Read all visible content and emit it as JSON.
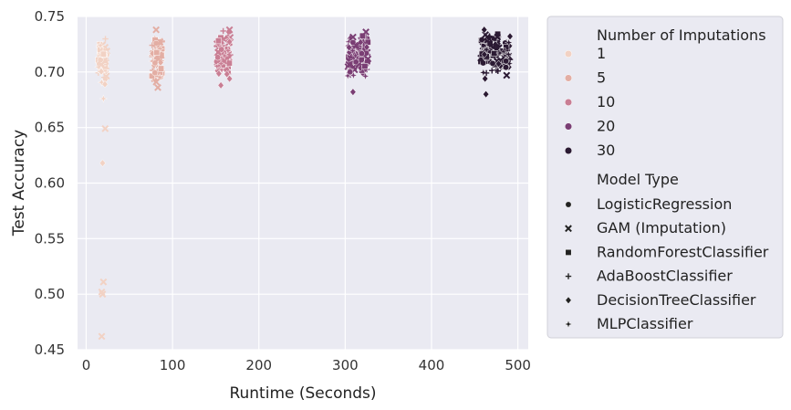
{
  "chart_data": {
    "type": "scatter",
    "xlabel": "Runtime (Seconds)",
    "ylabel": "Test Accuracy",
    "xlim": [
      -10,
      512
    ],
    "ylim": [
      0.45,
      0.75
    ],
    "xticks": [
      0,
      100,
      200,
      300,
      400,
      500
    ],
    "xtick_labels": [
      "0",
      "100",
      "200",
      "300",
      "400",
      "500"
    ],
    "yticks": [
      0.45,
      0.5,
      0.55,
      0.6,
      0.65,
      0.7,
      0.75
    ],
    "ytick_labels": [
      "0.45",
      "0.50",
      "0.55",
      "0.60",
      "0.65",
      "0.70",
      "0.75"
    ],
    "grid": true,
    "background": "#eaeaf2",
    "legend": {
      "placement": "outside-right",
      "hue_title": "Number of Imputations",
      "hue_entries": [
        {
          "label": "1",
          "color": "#f2d2c4"
        },
        {
          "label": "5",
          "color": "#e3aea4"
        },
        {
          "label": "10",
          "color": "#c97e94"
        },
        {
          "label": "20",
          "color": "#7a3e74"
        },
        {
          "label": "30",
          "color": "#2b1a33"
        }
      ],
      "style_title": "Model Type",
      "style_entries": [
        {
          "label": "LogisticRegression",
          "marker": "circle"
        },
        {
          "label": "GAM (Imputation)",
          "marker": "x"
        },
        {
          "label": "RandomForestClassifier",
          "marker": "square"
        },
        {
          "label": "AdaBoostClassifier",
          "marker": "plus"
        },
        {
          "label": "DecisionTreeClassifier",
          "marker": "diamond"
        },
        {
          "label": "MLPClassifier",
          "marker": "star"
        }
      ]
    },
    "clusters": [
      {
        "imputations": "1",
        "x_range": [
          14,
          24
        ],
        "y_range": [
          0.685,
          0.735
        ],
        "n": 70
      },
      {
        "imputations": "5",
        "x_range": [
          76,
          88
        ],
        "y_range": [
          0.688,
          0.738
        ],
        "n": 70
      },
      {
        "imputations": "10",
        "x_range": [
          151,
          167
        ],
        "y_range": [
          0.69,
          0.738
        ],
        "n": 80
      },
      {
        "imputations": "20",
        "x_range": [
          303,
          327
        ],
        "y_range": [
          0.695,
          0.736
        ],
        "n": 110
      },
      {
        "imputations": "30",
        "x_range": [
          457,
          492
        ],
        "y_range": [
          0.697,
          0.738
        ],
        "n": 120
      }
    ],
    "outliers": [
      {
        "x": 20,
        "y": 0.676,
        "imputations": "1",
        "marker": "star"
      },
      {
        "x": 22,
        "y": 0.649,
        "imputations": "1",
        "marker": "x"
      },
      {
        "x": 19,
        "y": 0.618,
        "imputations": "1",
        "marker": "diamond"
      },
      {
        "x": 20,
        "y": 0.511,
        "imputations": "1",
        "marker": "x"
      },
      {
        "x": 18,
        "y": 0.502,
        "imputations": "1",
        "marker": "x"
      },
      {
        "x": 19,
        "y": 0.5,
        "imputations": "1",
        "marker": "x"
      },
      {
        "x": 18,
        "y": 0.462,
        "imputations": "1",
        "marker": "x"
      },
      {
        "x": 83,
        "y": 0.686,
        "imputations": "5",
        "marker": "x"
      },
      {
        "x": 156,
        "y": 0.688,
        "imputations": "10",
        "marker": "diamond"
      },
      {
        "x": 309,
        "y": 0.682,
        "imputations": "20",
        "marker": "diamond"
      },
      {
        "x": 463,
        "y": 0.68,
        "imputations": "30",
        "marker": "diamond"
      },
      {
        "x": 462,
        "y": 0.694,
        "imputations": "30",
        "marker": "diamond"
      },
      {
        "x": 487,
        "y": 0.697,
        "imputations": "30",
        "marker": "x"
      },
      {
        "x": 324,
        "y": 0.736,
        "imputations": "20",
        "marker": "x"
      },
      {
        "x": 166,
        "y": 0.738,
        "imputations": "10",
        "marker": "x"
      },
      {
        "x": 81,
        "y": 0.738,
        "imputations": "5",
        "marker": "x"
      },
      {
        "x": 461,
        "y": 0.738,
        "imputations": "30",
        "marker": "diamond"
      }
    ]
  }
}
